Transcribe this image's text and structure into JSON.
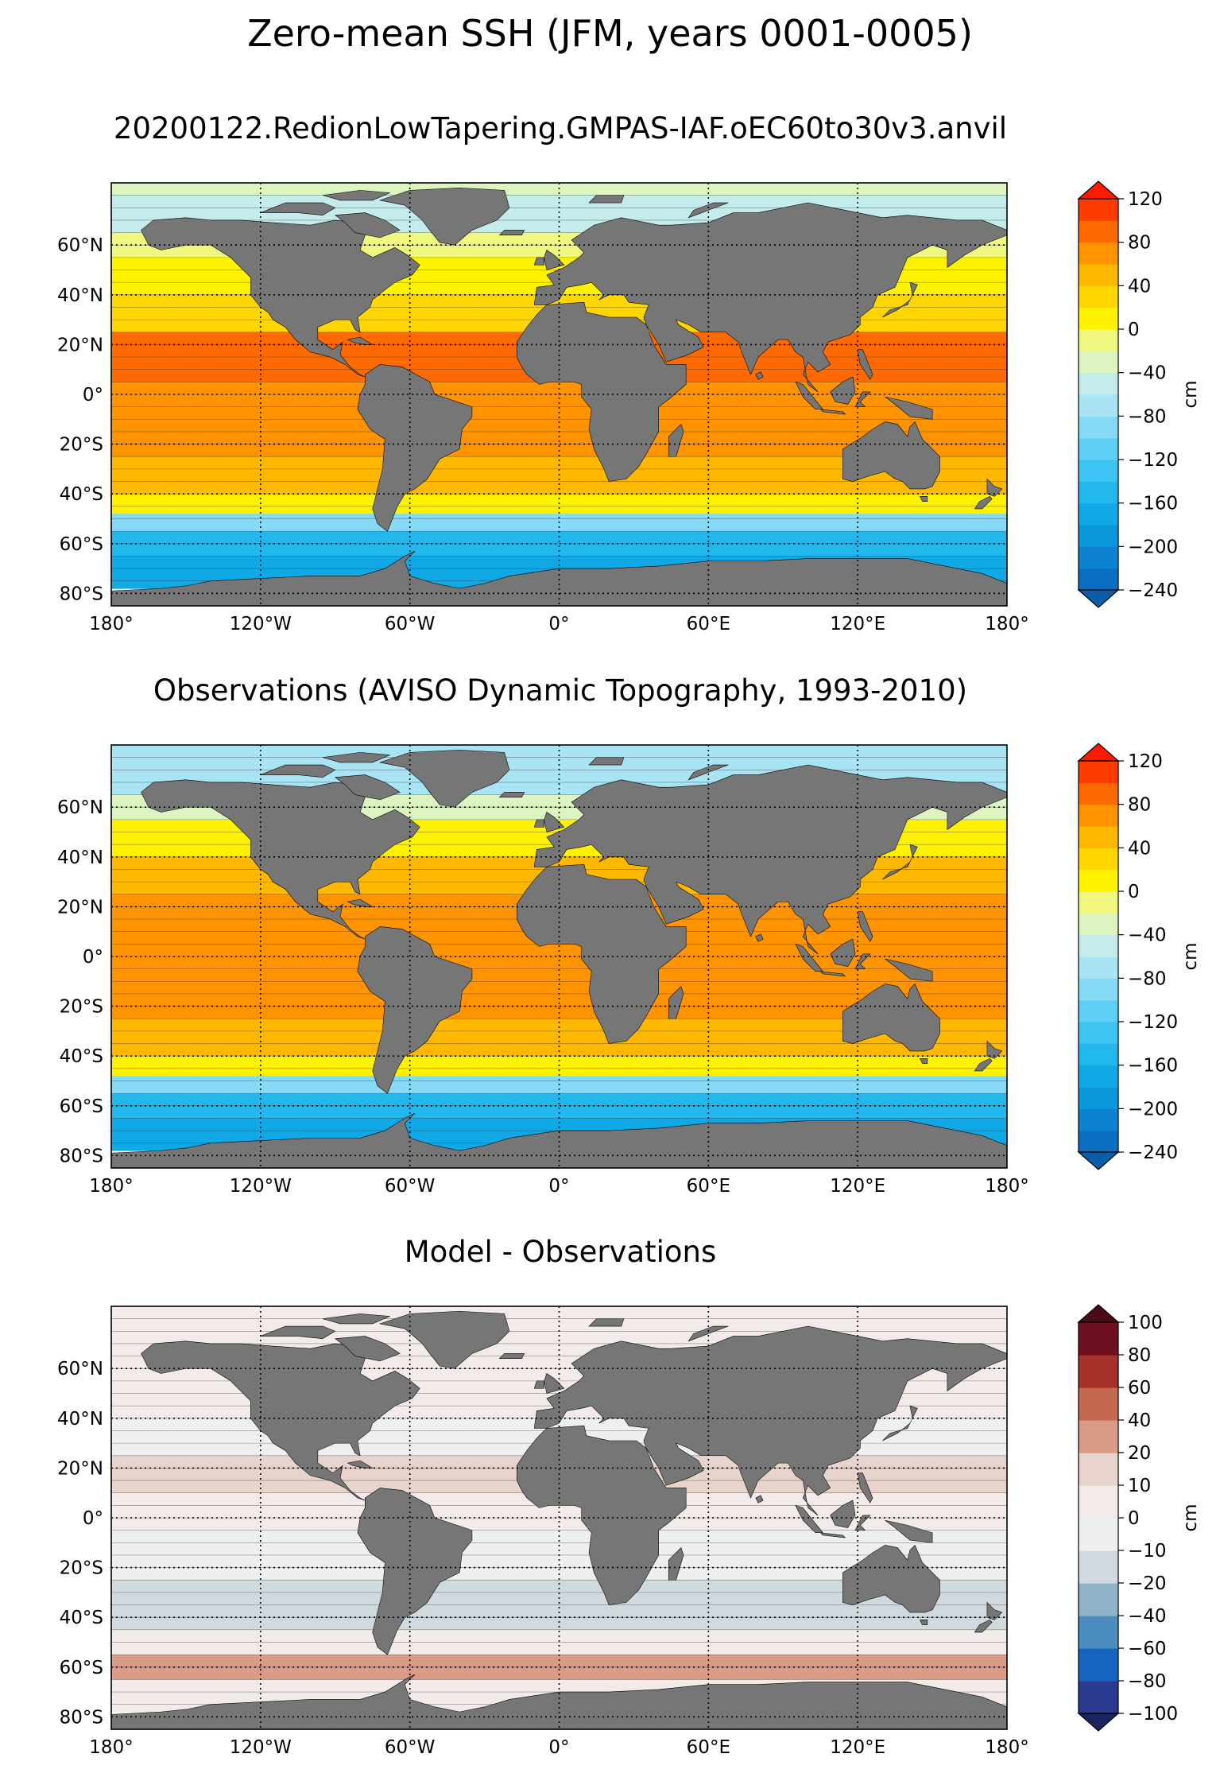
{
  "figure": {
    "title": "Zero-mean SSH (JFM, years 0001-0005)"
  },
  "chart_data": [
    {
      "type": "heatmap",
      "title": "20200122.RedionLowTapering.GMPAS-IAF.oEC60to30v3.anvil",
      "xlabel": "",
      "ylabel": "",
      "xlim": [
        -180,
        180
      ],
      "ylim": [
        -85,
        85
      ],
      "x_ticks": [
        -180,
        -120,
        -60,
        0,
        60,
        120,
        180
      ],
      "x_tick_labels": [
        "180°",
        "120°W",
        "60°W",
        "0°",
        "60°E",
        "120°E",
        "180°"
      ],
      "y_ticks": [
        -80,
        -60,
        -40,
        -20,
        0,
        20,
        40,
        60
      ],
      "y_tick_labels": [
        "80°S",
        "60°S",
        "40°S",
        "20°S",
        "0°",
        "20°N",
        "40°N",
        "60°N"
      ],
      "grid": true,
      "colorbar": {
        "label": "cm",
        "extend": "both",
        "levels": [
          -240,
          -220,
          -200,
          -180,
          -160,
          -140,
          -120,
          -100,
          -80,
          -60,
          -40,
          -20,
          0,
          20,
          40,
          60,
          80,
          100,
          120
        ],
        "tick_values": [
          -240,
          -200,
          -160,
          -120,
          -80,
          -40,
          0,
          40,
          80,
          120
        ],
        "tick_labels": [
          "−240",
          "−200",
          "−160",
          "−120",
          "−80",
          "−40",
          "0",
          "40",
          "80",
          "120"
        ],
        "colors": [
          "#0a6fc2",
          "#0d82d0",
          "#0a97dc",
          "#10a9e6",
          "#22b8ee",
          "#3ec4f2",
          "#5fd0f5",
          "#86daf6",
          "#a8e4f3",
          "#c4ecec",
          "#dcf4c0",
          "#f0f880",
          "#fff200",
          "#ffd600",
          "#ffb800",
          "#ff9400",
          "#ff6a00",
          "#ff3c00"
        ],
        "under_color": "#0a5ea8",
        "over_color": "#ff1a00"
      },
      "zones": [
        {
          "lat": [
            80,
            85
          ],
          "value": -30
        },
        {
          "lat": [
            65,
            80
          ],
          "value": -40
        },
        {
          "lat": [
            55,
            65
          ],
          "value": -10
        },
        {
          "lat": [
            40,
            55
          ],
          "value": 10
        },
        {
          "lat": [
            25,
            40
          ],
          "value": 40
        },
        {
          "lat": [
            5,
            25
          ],
          "value": 90
        },
        {
          "lat": [
            -5,
            5
          ],
          "value": 70
        },
        {
          "lat": [
            -25,
            -5
          ],
          "value": 80
        },
        {
          "lat": [
            -40,
            -25
          ],
          "value": 50
        },
        {
          "lat": [
            -48,
            -40
          ],
          "value": 10
        },
        {
          "lat": [
            -55,
            -48
          ],
          "value": -80
        },
        {
          "lat": [
            -65,
            -55
          ],
          "value": -140
        },
        {
          "lat": [
            -78,
            -65
          ],
          "value": -160
        }
      ]
    },
    {
      "type": "heatmap",
      "title": "Observations (AVISO Dynamic Topography, 1993-2010)",
      "xlabel": "",
      "ylabel": "",
      "xlim": [
        -180,
        180
      ],
      "ylim": [
        -85,
        85
      ],
      "x_ticks": [
        -180,
        -120,
        -60,
        0,
        60,
        120,
        180
      ],
      "x_tick_labels": [
        "180°",
        "120°W",
        "60°W",
        "0°",
        "60°E",
        "120°E",
        "180°"
      ],
      "y_ticks": [
        -80,
        -60,
        -40,
        -20,
        0,
        20,
        40,
        60
      ],
      "y_tick_labels": [
        "80°S",
        "60°S",
        "40°S",
        "20°S",
        "0°",
        "20°N",
        "40°N",
        "60°N"
      ],
      "grid": true,
      "colorbar": {
        "label": "cm",
        "extend": "both",
        "levels": [
          -240,
          -220,
          -200,
          -180,
          -160,
          -140,
          -120,
          -100,
          -80,
          -60,
          -40,
          -20,
          0,
          20,
          40,
          60,
          80,
          100,
          120
        ],
        "tick_values": [
          -240,
          -200,
          -160,
          -120,
          -80,
          -40,
          0,
          40,
          80,
          120
        ],
        "tick_labels": [
          "−240",
          "−200",
          "−160",
          "−120",
          "−80",
          "−40",
          "0",
          "40",
          "80",
          "120"
        ],
        "colors": [
          "#0a6fc2",
          "#0d82d0",
          "#0a97dc",
          "#10a9e6",
          "#22b8ee",
          "#3ec4f2",
          "#5fd0f5",
          "#86daf6",
          "#a8e4f3",
          "#c4ecec",
          "#dcf4c0",
          "#f0f880",
          "#fff200",
          "#ffd600",
          "#ffb800",
          "#ff9400",
          "#ff6a00",
          "#ff3c00"
        ],
        "under_color": "#0a5ea8",
        "over_color": "#ff1a00"
      },
      "zones": [
        {
          "lat": [
            80,
            85
          ],
          "value": -60
        },
        {
          "lat": [
            65,
            80
          ],
          "value": -70
        },
        {
          "lat": [
            55,
            65
          ],
          "value": -20
        },
        {
          "lat": [
            40,
            55
          ],
          "value": 10
        },
        {
          "lat": [
            25,
            40
          ],
          "value": 50
        },
        {
          "lat": [
            5,
            25
          ],
          "value": 80
        },
        {
          "lat": [
            -5,
            5
          ],
          "value": 70
        },
        {
          "lat": [
            -25,
            -5
          ],
          "value": 80
        },
        {
          "lat": [
            -40,
            -25
          ],
          "value": 50
        },
        {
          "lat": [
            -48,
            -40
          ],
          "value": 10
        },
        {
          "lat": [
            -55,
            -48
          ],
          "value": -80
        },
        {
          "lat": [
            -65,
            -55
          ],
          "value": -140
        },
        {
          "lat": [
            -78,
            -65
          ],
          "value": -160
        }
      ]
    },
    {
      "type": "heatmap",
      "title": "Model - Observations",
      "xlabel": "",
      "ylabel": "",
      "xlim": [
        -180,
        180
      ],
      "ylim": [
        -85,
        85
      ],
      "x_ticks": [
        -180,
        -120,
        -60,
        0,
        60,
        120,
        180
      ],
      "x_tick_labels": [
        "180°",
        "120°W",
        "60°W",
        "0°",
        "60°E",
        "120°E",
        "180°"
      ],
      "y_ticks": [
        -80,
        -60,
        -40,
        -20,
        0,
        20,
        40,
        60
      ],
      "y_tick_labels": [
        "80°S",
        "60°S",
        "40°S",
        "20°S",
        "0°",
        "20°N",
        "40°N",
        "60°N"
      ],
      "grid": true,
      "colorbar": {
        "label": "cm",
        "extend": "both",
        "levels": [
          -100,
          -80,
          -60,
          -40,
          -20,
          -10,
          0,
          10,
          20,
          40,
          60,
          80,
          100
        ],
        "tick_values": [
          -100,
          -80,
          -60,
          -40,
          -20,
          -10,
          0,
          10,
          20,
          40,
          60,
          80,
          100
        ],
        "tick_labels": [
          "−100",
          "−80",
          "−60",
          "−40",
          "−20",
          "−10",
          "0",
          "10",
          "20",
          "40",
          "60",
          "80",
          "100"
        ],
        "colors": [
          "#2a3b8f",
          "#1565c0",
          "#4a8cbd",
          "#8fb4c9",
          "#cfd9de",
          "#eef0f0",
          "#f3ebea",
          "#e8d3cd",
          "#d99a86",
          "#c4684f",
          "#a8302a",
          "#6e1020"
        ],
        "under_color": "#1a2560",
        "over_color": "#4a0a18"
      },
      "zones": [
        {
          "lat": [
            65,
            85
          ],
          "value": 5
        },
        {
          "lat": [
            40,
            65
          ],
          "value": 5
        },
        {
          "lat": [
            25,
            40
          ],
          "value": -5
        },
        {
          "lat": [
            10,
            25
          ],
          "value": 15
        },
        {
          "lat": [
            -5,
            10
          ],
          "value": 5
        },
        {
          "lat": [
            -25,
            -5
          ],
          "value": -5
        },
        {
          "lat": [
            -45,
            -25
          ],
          "value": -15
        },
        {
          "lat": [
            -55,
            -45
          ],
          "value": 5
        },
        {
          "lat": [
            -65,
            -55
          ],
          "value": 25
        },
        {
          "lat": [
            -78,
            -65
          ],
          "value": 5
        }
      ]
    }
  ]
}
